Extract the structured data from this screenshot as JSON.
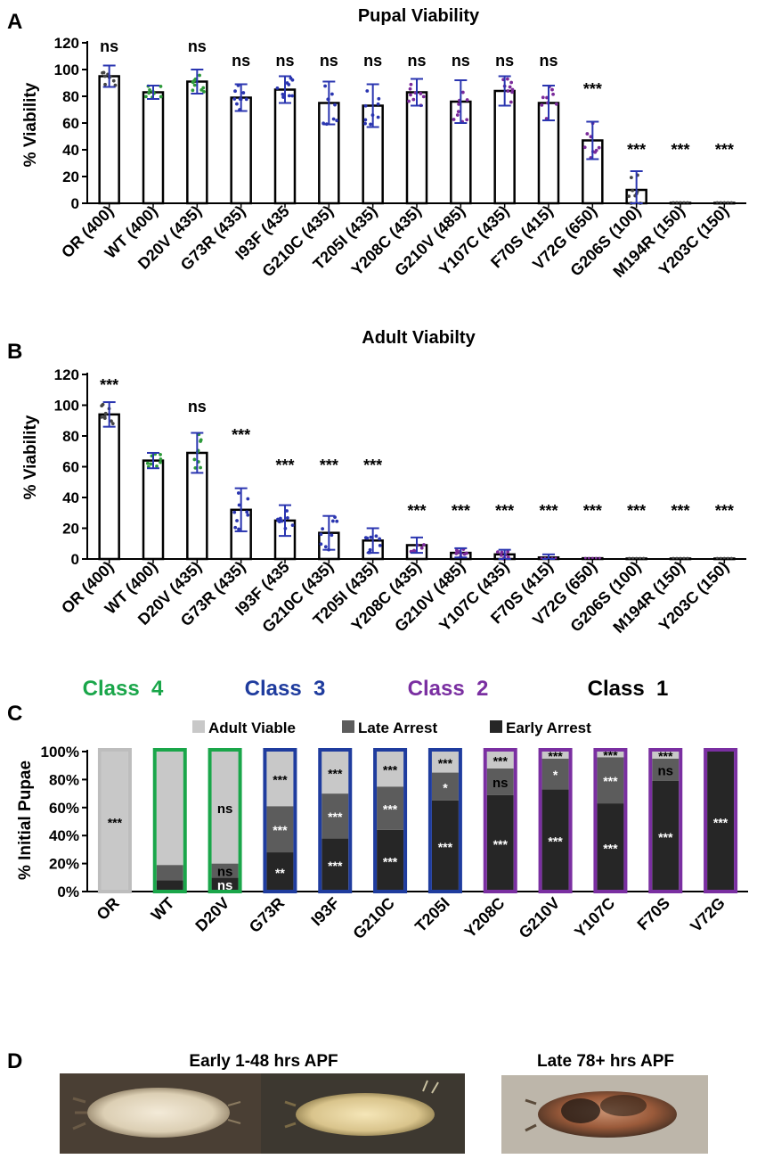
{
  "panels": {
    "A": "A",
    "B": "B",
    "C": "C",
    "D": "D"
  },
  "colors": {
    "bar_edge": "#000000",
    "class4": "#1aa64a",
    "class3": "#1f3c9e",
    "class2": "#7a2fa1",
    "class1": "#000000",
    "adult_viable": "#c8c8c8",
    "late_arrest": "#5c5c5c",
    "early_arrest": "#262626",
    "pt_class4": "#2e9a3a",
    "pt_class3": "#2a35b0",
    "pt_class2": "#7a2a9a"
  },
  "chart_data": [
    {
      "id": "A",
      "type": "bar",
      "title": "Pupal Viability",
      "xlabel": "",
      "ylabel": "% Viability",
      "ylim": [
        0,
        120
      ],
      "yticks": [
        0,
        20,
        40,
        60,
        80,
        100,
        120
      ],
      "categories": [
        "OR (400)",
        "WT (400)",
        "D20V (435)",
        "G73R (435)",
        "I93F (435",
        "G210C (435)",
        "T205I (435)",
        "Y208C (435)",
        "G210V (485)",
        "Y107C (435)",
        "F70S (415)",
        "V72G (650)",
        "G206S (100)",
        "M194R (150)",
        "Y203C (150)"
      ],
      "values": [
        95,
        83,
        91,
        79,
        85,
        75,
        73,
        83,
        76,
        84,
        75,
        47,
        10,
        0.3,
        0.3
      ],
      "errors": [
        8,
        5,
        9,
        10,
        10,
        16,
        16,
        10,
        16,
        11,
        13,
        14,
        14,
        0,
        0
      ],
      "point_class": [
        1,
        4,
        4,
        3,
        3,
        3,
        3,
        2,
        2,
        2,
        2,
        2,
        1,
        1,
        1
      ],
      "significance": [
        "ns",
        "",
        "ns",
        "ns",
        "ns",
        "ns",
        "ns",
        "ns",
        "ns",
        "ns",
        "ns",
        "***",
        "***",
        "***",
        "***"
      ],
      "grid": false
    },
    {
      "id": "B",
      "type": "bar",
      "title": "Adult Viabilty",
      "xlabel": "",
      "ylabel": "% Viability",
      "ylim": [
        0,
        120
      ],
      "yticks": [
        0,
        20,
        40,
        60,
        80,
        100,
        120
      ],
      "categories": [
        "OR (400)",
        "WT (400)",
        "D20V (435)",
        "G73R (435)",
        "I93F (435",
        "G210C (435)",
        "T205I (435)",
        "Y208C (435)",
        "G210V (485)",
        "Y107C (435)",
        "F70S (415)",
        "V72G (650)",
        "G206S (100)",
        "M194R (150)",
        "Y203C (150)"
      ],
      "values": [
        94,
        64,
        69,
        32,
        25,
        17,
        12,
        9,
        4,
        3,
        1,
        0.5,
        0.3,
        0.3,
        0.3
      ],
      "errors": [
        8,
        5,
        13,
        14,
        10,
        11,
        8,
        5,
        3,
        3,
        2,
        0,
        0,
        0,
        0
      ],
      "point_class": [
        1,
        4,
        4,
        3,
        3,
        3,
        3,
        2,
        2,
        2,
        2,
        2,
        1,
        1,
        1
      ],
      "significance": [
        "***",
        "",
        "ns",
        "***",
        "***",
        "***",
        "***",
        "***",
        "***",
        "***",
        "***",
        "***",
        "***",
        "***",
        "***"
      ],
      "grid": false
    },
    {
      "id": "C",
      "type": "bar",
      "stacked": true,
      "percent": true,
      "ylabel": "% Initial Pupae",
      "ylim": [
        0,
        100
      ],
      "yticks": [
        "0%",
        "20%",
        "40%",
        "60%",
        "80%",
        "100%"
      ],
      "categories": [
        "OR",
        "WT",
        "D20V",
        "G73R",
        "I93F",
        "G210C",
        "T205I",
        "Y208C",
        "G210V",
        "Y107C",
        "F70S",
        "V72G"
      ],
      "outline_class": [
        0,
        4,
        4,
        3,
        3,
        3,
        3,
        2,
        2,
        2,
        2,
        2
      ],
      "class_headers": [
        {
          "label": "Class  4",
          "class": 4
        },
        {
          "label": "Class  3",
          "class": 3
        },
        {
          "label": "Class  2",
          "class": 2
        },
        {
          "label": "Class  1",
          "class": 1
        }
      ],
      "legend": {
        "position": "top"
      },
      "series": [
        {
          "name": "Early Arrest",
          "color_key": "early_arrest",
          "values": [
            0,
            8,
            10,
            28,
            38,
            44,
            65,
            69,
            73,
            63,
            79,
            100
          ],
          "labels": [
            "",
            "",
            "ns",
            "**",
            "***",
            "***",
            "***",
            "***",
            "***",
            "***",
            "***",
            "***"
          ]
        },
        {
          "name": "Late Arrest",
          "color_key": "late_arrest",
          "values": [
            0,
            11,
            10,
            33,
            32,
            31,
            20,
            19,
            22,
            33,
            16,
            0
          ],
          "labels": [
            "",
            "",
            "ns",
            "***",
            "***",
            "***",
            "*",
            "ns",
            "*",
            "***",
            "ns",
            ""
          ]
        },
        {
          "name": "Adult Viable",
          "color_key": "adult_viable",
          "values": [
            100,
            81,
            80,
            39,
            30,
            25,
            15,
            12,
            5,
            4,
            5,
            0
          ],
          "labels": [
            "***",
            "",
            "ns",
            "***",
            "***",
            "***",
            "***",
            "***",
            "***",
            "***",
            "***",
            ""
          ]
        }
      ]
    }
  ],
  "panel_d": {
    "early_label": "Early 1-48 hrs APF",
    "late_label": "Late 78+ hrs APF",
    "photos": [
      "early-pupa-photo-1",
      "early-pupa-photo-2",
      "late-pupa-photo"
    ]
  }
}
